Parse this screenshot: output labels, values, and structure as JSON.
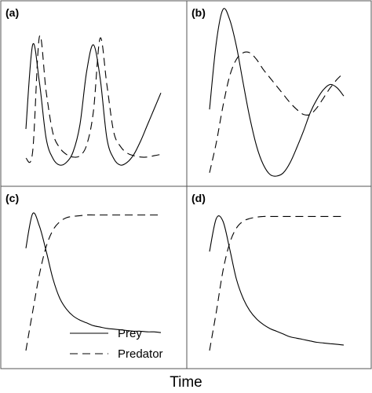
{
  "xlabel": "Time",
  "legend": {
    "prey": "Prey",
    "predator": "Predator",
    "placement": "bottom-center of panel (c)"
  },
  "colors": {
    "line": "#000000",
    "frame": "#555555"
  },
  "chart_data": [
    {
      "type": "line",
      "panel": "(a)",
      "title": "(a)",
      "xlabel": "",
      "ylabel": "",
      "x": [
        0,
        1,
        2,
        3,
        4,
        5,
        6,
        7,
        8,
        9,
        10,
        11,
        12,
        13,
        14,
        15,
        16,
        17,
        18,
        19,
        20
      ],
      "series": [
        {
          "name": "Prey",
          "style": "solid",
          "values": [
            0.27,
            0.9,
            0.62,
            0.2,
            0.05,
            0.0,
            0.02,
            0.1,
            0.3,
            0.7,
            0.9,
            0.65,
            0.2,
            0.05,
            0.0,
            0.02,
            0.08,
            0.18,
            0.3,
            0.42,
            0.54
          ]
        },
        {
          "name": "Predator",
          "style": "dashed",
          "values": [
            0.05,
            0.1,
            0.96,
            0.55,
            0.24,
            0.13,
            0.08,
            0.06,
            0.07,
            0.15,
            0.4,
            0.95,
            0.6,
            0.25,
            0.14,
            0.09,
            0.07,
            0.06,
            0.06,
            0.07,
            0.08
          ]
        }
      ]
    },
    {
      "type": "line",
      "panel": "(b)",
      "title": "(b)",
      "xlabel": "",
      "ylabel": "",
      "x": [
        0,
        1,
        2,
        3,
        4,
        5,
        6,
        7,
        8,
        9,
        10,
        11,
        12,
        13,
        14,
        15,
        16,
        17,
        18,
        19,
        20
      ],
      "series": [
        {
          "name": "Prey",
          "style": "solid",
          "values": [
            0.4,
            0.8,
            1.0,
            0.94,
            0.78,
            0.56,
            0.35,
            0.18,
            0.07,
            0.01,
            0.0,
            0.02,
            0.08,
            0.17,
            0.27,
            0.38,
            0.46,
            0.52,
            0.55,
            0.53,
            0.48
          ]
        },
        {
          "name": "Predator",
          "style": "dashed",
          "values": [
            0.02,
            0.2,
            0.42,
            0.6,
            0.7,
            0.74,
            0.74,
            0.7,
            0.64,
            0.59,
            0.54,
            0.49,
            0.44,
            0.4,
            0.37,
            0.37,
            0.41,
            0.47,
            0.53,
            0.58,
            0.62
          ]
        }
      ]
    },
    {
      "type": "line",
      "panel": "(c)",
      "title": "(c)",
      "xlabel": "",
      "ylabel": "",
      "x": [
        0,
        1,
        2,
        3,
        4,
        5,
        6,
        7,
        8,
        9,
        10,
        11,
        12,
        13,
        14,
        15,
        16,
        17,
        18,
        19,
        20
      ],
      "series": [
        {
          "name": "Prey",
          "style": "solid",
          "values": [
            0.74,
            0.99,
            0.9,
            0.72,
            0.52,
            0.38,
            0.3,
            0.25,
            0.22,
            0.2,
            0.18,
            0.17,
            0.16,
            0.155,
            0.15,
            0.145,
            0.14,
            0.14,
            0.135,
            0.135,
            0.13
          ]
        },
        {
          "name": "Predator",
          "style": "dashed",
          "values": [
            0.0,
            0.28,
            0.55,
            0.75,
            0.87,
            0.93,
            0.96,
            0.97,
            0.975,
            0.98,
            0.98,
            0.98,
            0.98,
            0.98,
            0.98,
            0.98,
            0.98,
            0.98,
            0.98,
            0.98,
            0.98
          ]
        }
      ]
    },
    {
      "type": "line",
      "panel": "(d)",
      "title": "(d)",
      "xlabel": "",
      "ylabel": "",
      "x": [
        0,
        1,
        2,
        3,
        4,
        5,
        6,
        7,
        8,
        9,
        10,
        11,
        12,
        13,
        14,
        15,
        16,
        17,
        18,
        19,
        20
      ],
      "series": [
        {
          "name": "Prey",
          "style": "solid",
          "values": [
            0.72,
            0.96,
            0.94,
            0.74,
            0.52,
            0.38,
            0.29,
            0.23,
            0.19,
            0.16,
            0.14,
            0.12,
            0.1,
            0.09,
            0.08,
            0.07,
            0.06,
            0.055,
            0.05,
            0.045,
            0.04
          ]
        },
        {
          "name": "Predator",
          "style": "dashed",
          "values": [
            0.0,
            0.28,
            0.58,
            0.78,
            0.89,
            0.94,
            0.96,
            0.97,
            0.975,
            0.975,
            0.975,
            0.975,
            0.975,
            0.975,
            0.975,
            0.975,
            0.975,
            0.975,
            0.975,
            0.975,
            0.975
          ]
        }
      ]
    }
  ]
}
